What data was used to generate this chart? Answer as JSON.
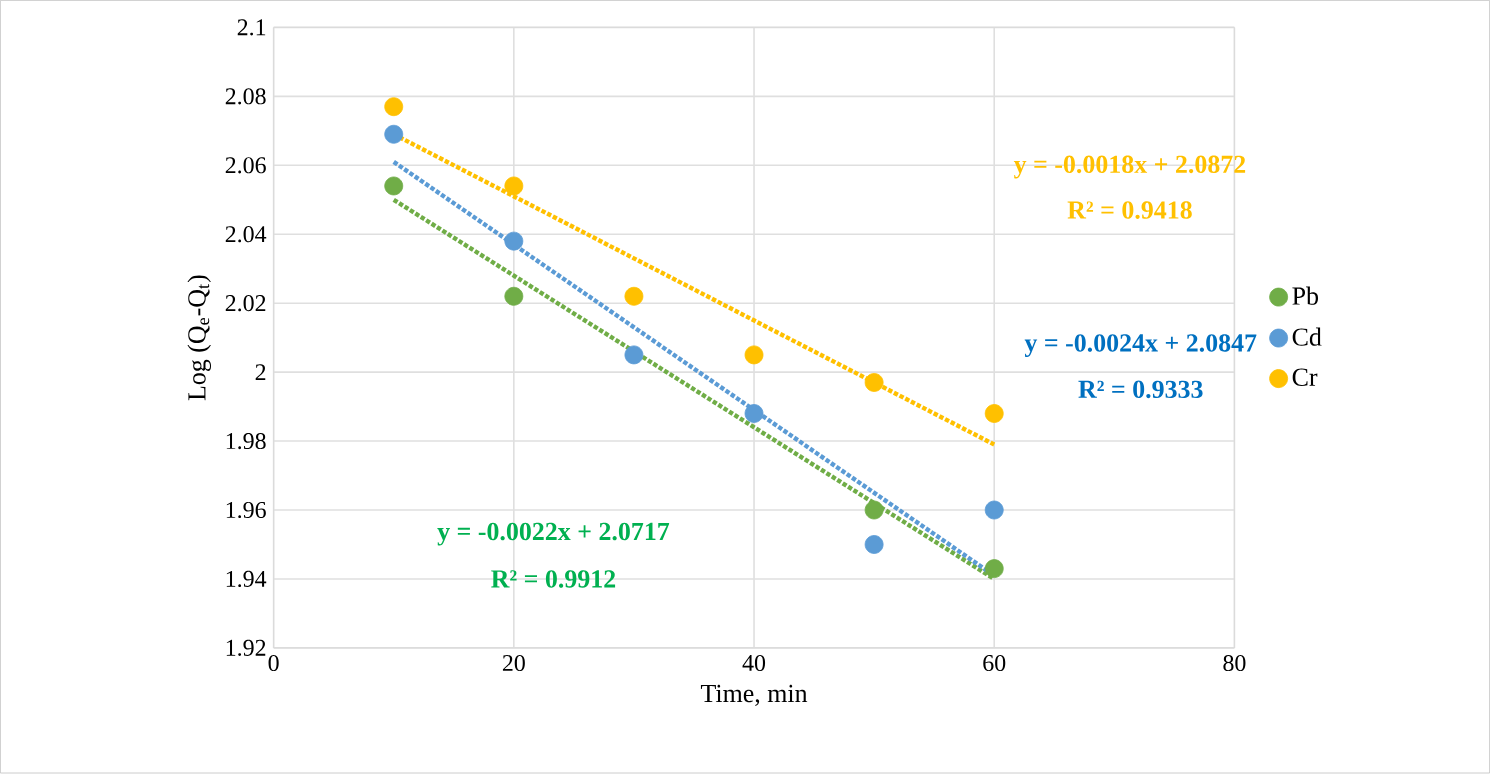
{
  "chart_data": {
    "type": "scatter",
    "xlabel": "Time, min",
    "ylabel": "Log (Q$_{e}$-Q$_{t}$)",
    "x": [
      10,
      20,
      30,
      40,
      50,
      60
    ],
    "series": [
      {
        "name": "Pb",
        "color": "#70ad47",
        "values": [
          2.054,
          2.022,
          null,
          null,
          1.96,
          1.943
        ]
      },
      {
        "name": "Cd",
        "color": "#5b9bd5",
        "values": [
          2.069,
          2.038,
          2.005,
          1.988,
          1.95,
          1.96
        ]
      },
      {
        "name": "Cr",
        "color": "#ffc000",
        "values": [
          2.077,
          2.054,
          2.022,
          2.005,
          1.997,
          1.988
        ]
      },
      {
        "type": "line",
        "color": "#70ad47",
        "values": [
          2.05,
          null,
          null,
          null,
          null,
          1.94
        ],
        "line_style": "dotted",
        "marker": "none"
      },
      {
        "type": "line",
        "color": "#5b9bd5",
        "values": [
          2.061,
          null,
          null,
          null,
          null,
          1.941
        ],
        "line_style": "dotted",
        "marker": "none"
      },
      {
        "type": "line",
        "color": "#ffc000",
        "values": [
          2.069,
          null,
          null,
          null,
          null,
          1.979
        ],
        "line_style": "dotted",
        "marker": "none"
      }
    ],
    "annotations": [
      "y = -0.0018x + 2.0872",
      "R² = 0.9418",
      "y = -0.0024x + 2.0847",
      "R² = 0.9333",
      "y = -0.0022x + 2.0717",
      "R² = 0.9912"
    ],
    "xlim": [
      0,
      80
    ],
    "xticks": [
      0,
      20,
      40,
      60,
      80
    ],
    "ylim": [
      1.92,
      2.1
    ],
    "yticks": [
      1.92,
      1.94,
      1.96,
      1.98,
      2,
      2.02,
      2.04,
      2.06,
      2.08,
      2.1
    ],
    "grid": true,
    "legend": "right",
    "marker": "circle"
  }
}
